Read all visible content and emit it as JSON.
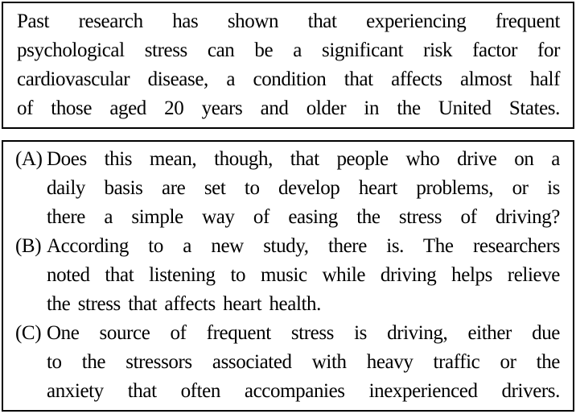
{
  "colors": {
    "background": "#ffffff",
    "border": "#000000",
    "text": "#000000"
  },
  "passage_box": {
    "lines": [
      "Past research has shown that experiencing frequent",
      "psychological stress can be a significant risk factor for",
      "cardiovascular disease, a condition that affects almost half",
      "of those aged 20 years and older in the United States."
    ]
  },
  "ordering_box": {
    "items": [
      {
        "label": "(A)",
        "lines": [
          "Does this mean, though, that people who drive on a",
          "daily basis are set to develop heart problems, or is",
          "there a simple way of easing the stress of driving?"
        ]
      },
      {
        "label": "(B)",
        "lines": [
          "According to a new study, there is. The researchers",
          "noted that listening to music while driving helps relieve",
          "the stress that affects heart health."
        ]
      },
      {
        "label": "(C)",
        "lines": [
          "One source of frequent stress is driving, either due",
          "to the stressors associated with heavy traffic or the",
          "anxiety that often accompanies inexperienced drivers."
        ]
      }
    ]
  }
}
